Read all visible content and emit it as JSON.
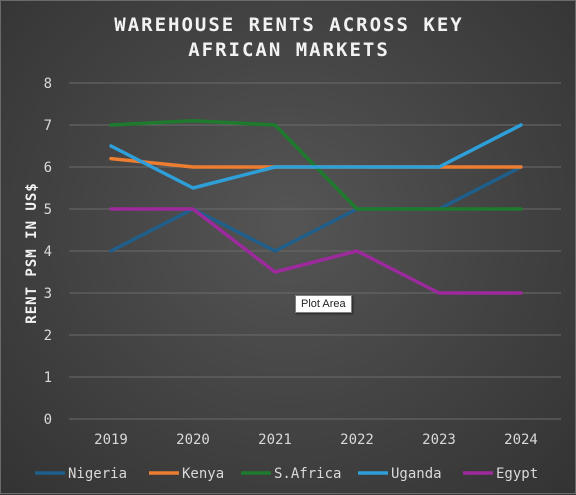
{
  "chart_data": {
    "type": "line",
    "title_lines": [
      "WAREHOUSE RENTS ACROSS KEY",
      "AFRICAN MARKETS"
    ],
    "ylabel": "RENT PSM  IN US$",
    "xlabel": "",
    "categories": [
      "2019",
      "2020",
      "2021",
      "2022",
      "2023",
      "2024"
    ],
    "ylim": [
      0,
      8
    ],
    "yticks": [
      0,
      1,
      2,
      3,
      4,
      5,
      6,
      7,
      8
    ],
    "grid": true,
    "legend_position": "bottom",
    "series": [
      {
        "name": "Nigeria",
        "color": "#1f5f8b",
        "values": [
          4,
          5,
          4,
          5,
          5,
          6
        ]
      },
      {
        "name": "Kenya",
        "color": "#ed7d31",
        "values": [
          6.2,
          6,
          6,
          6,
          6,
          6
        ]
      },
      {
        "name": "S.Africa",
        "color": "#1e7b2e",
        "values": [
          7,
          7.1,
          7,
          5,
          5,
          5
        ]
      },
      {
        "name": "Uganda",
        "color": "#2e9fd8",
        "values": [
          6.5,
          5.5,
          6,
          6,
          6,
          7
        ]
      },
      {
        "name": "Egypt",
        "color": "#9c2a9c",
        "values": [
          5,
          5,
          3.5,
          4,
          3,
          3
        ]
      }
    ]
  },
  "tooltip": "Plot Area"
}
